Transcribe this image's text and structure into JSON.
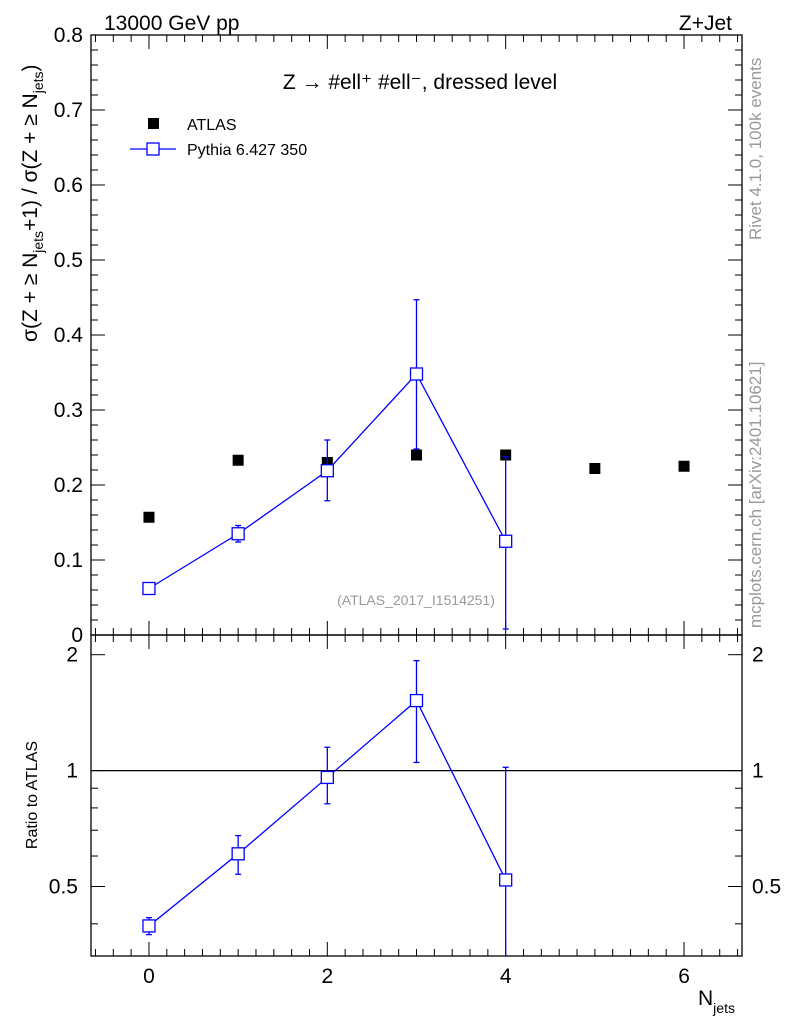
{
  "header": {
    "left": "13000 GeV pp",
    "right": "Z+Jet"
  },
  "side_text": {
    "rivet": "Rivet 4.1.0,  100k events",
    "mcplots": "mcplots.cern.ch [arXiv:2401.10621]"
  },
  "chart_data": [
    {
      "type": "scatter",
      "title": "Z → #ell⁺ #ell⁻, dressed level",
      "ylabel": "σ(Z + ≥ N_jets +1) / σ(Z + ≥ N_jets)",
      "ylim": [
        0,
        0.8
      ],
      "xlim": [
        -0.65,
        6.65
      ],
      "y_ticks": [
        "0",
        "0.1",
        "0.2",
        "0.3",
        "0.4",
        "0.5",
        "0.6",
        "0.7",
        "0.8"
      ],
      "analysis_label": "(ATLAS_2017_I1514251)",
      "legend_placement": "top-left",
      "series": [
        {
          "name": "ATLAS",
          "color": "#000000",
          "marker": "filled-square",
          "x": [
            0,
            1,
            2,
            3,
            4,
            5,
            6
          ],
          "y": [
            0.157,
            0.233,
            0.23,
            0.24,
            0.24,
            0.222,
            0.225
          ]
        },
        {
          "name": "Pythia 6.427 350",
          "color": "#0000ff",
          "marker": "open-square-line",
          "x": [
            0,
            1,
            2,
            3,
            4
          ],
          "y": [
            0.062,
            0.135,
            0.219,
            0.348,
            0.125
          ],
          "yerr_low": [
            0.003,
            0.011,
            0.04,
            0.1,
            0.117
          ],
          "yerr_high": [
            0.003,
            0.011,
            0.041,
            0.099,
            0.113
          ]
        }
      ]
    },
    {
      "type": "scatter",
      "ylabel": "Ratio to ATLAS",
      "xlabel": "N_jets",
      "ylim": [
        0.33,
        2.25
      ],
      "xlim": [
        -0.65,
        6.65
      ],
      "x_ticks": [
        "0",
        "2",
        "4",
        "6"
      ],
      "y_ticks": [
        "0.5",
        "1",
        "2"
      ],
      "reference_line": 1,
      "series": [
        {
          "name": "Pythia 6.427 350",
          "color": "#0000ff",
          "x": [
            0,
            1,
            2,
            3,
            4
          ],
          "y": [
            0.395,
            0.608,
            0.96,
            1.52,
            0.52
          ],
          "yerr_low": [
            0.02,
            0.07,
            0.14,
            0.47,
            0.52
          ],
          "yerr_high": [
            0.02,
            0.07,
            0.19,
            0.41,
            0.5
          ]
        }
      ]
    }
  ]
}
